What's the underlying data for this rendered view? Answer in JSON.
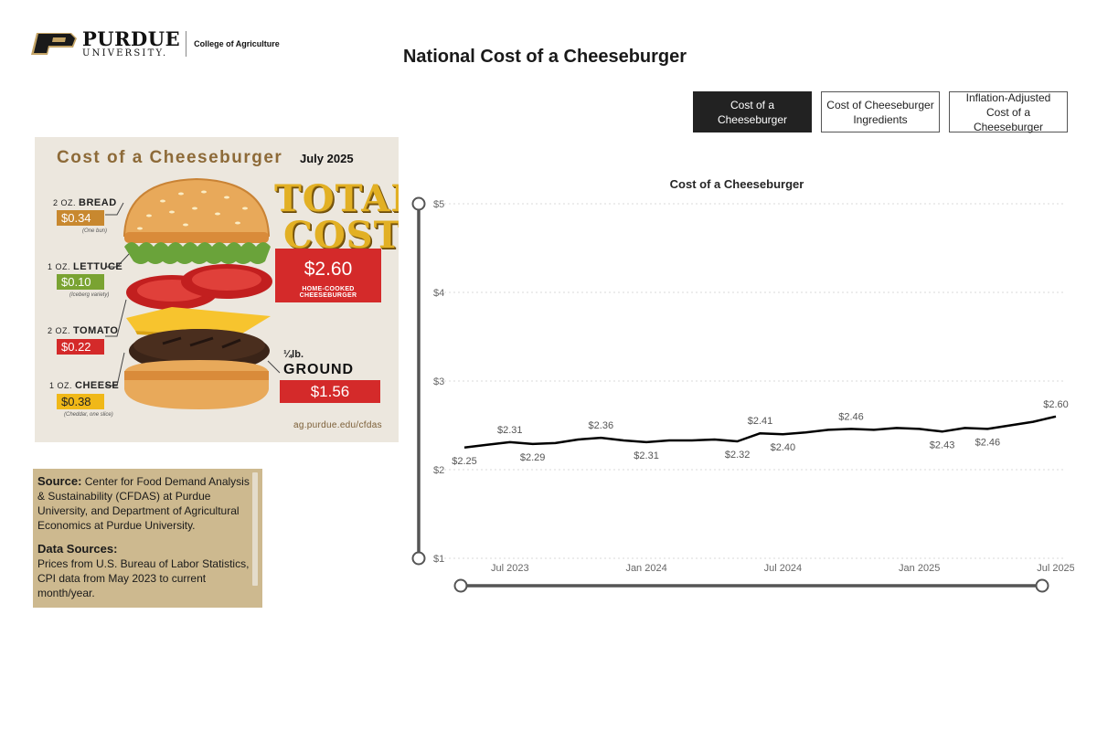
{
  "header": {
    "logo_name": "PURDUE",
    "logo_sub": "UNIVERSITY.",
    "logo_college": "College of Agriculture",
    "page_title": "National Cost of a Cheeseburger"
  },
  "toggles": [
    {
      "label": "Cost of a Cheeseburger",
      "active": true
    },
    {
      "label": "Cost of Cheeseburger Ingredients",
      "active": false
    },
    {
      "label": "Inflation-Adjusted Cost of a Cheeseburger",
      "active": false
    }
  ],
  "infographic": {
    "title": "Cost of a Cheeseburger",
    "date": "July 2025",
    "ingredients": [
      {
        "qty": "2 OZ.",
        "name": "BREAD",
        "price": "$0.34",
        "note": "(One bun)",
        "color": "#c8882f"
      },
      {
        "qty": "1 OZ.",
        "name": "LETTUCE",
        "price": "$0.10",
        "note": "(Iceberg variety)",
        "color": "#7aa332"
      },
      {
        "qty": "2 OZ.",
        "name": "TOMATO",
        "price": "$0.22",
        "note": "",
        "color": "#d42a2a"
      },
      {
        "qty": "1 OZ.",
        "name": "CHEESE",
        "price": "$0.38",
        "note": "(Cheddar, one slice)",
        "color": "#f0b818"
      }
    ],
    "total_word_1": "TOTAL",
    "total_word_2": "COST",
    "total_value": "$2.60",
    "total_sub": "HOME-COOKED CHEESEBURGER",
    "beef_unit": "¼lb.",
    "beef_label": "GROUND BEEF",
    "beef_price": "$1.56",
    "url": "ag.purdue.edu/cfdas"
  },
  "source_card": {
    "source_label": "Source:",
    "source_text": "Center for Food Demand Analysis & Sustainability (CFDAS) at Purdue University, and Department of Agricultural Economics at Purdue University.",
    "data_sources_label": "Data Sources:",
    "data_sources_text": "Prices from U.S. Bureau of Labor Statistics, CPI data from May 2023 to current month/year."
  },
  "chart_data": {
    "type": "line",
    "title": "Cost of a Cheeseburger",
    "xlabel": "",
    "ylabel": "",
    "ylim": [
      1,
      5
    ],
    "yticks": [
      "$1",
      "$2",
      "$3",
      "$4",
      "$5"
    ],
    "xticks": [
      {
        "label": "Jul 2023",
        "x": "2023-07"
      },
      {
        "label": "Jan 2024",
        "x": "2024-01"
      },
      {
        "label": "Jul 2024",
        "x": "2024-07"
      },
      {
        "label": "Jan 2025",
        "x": "2025-01"
      },
      {
        "label": "Jul 2025",
        "x": "2025-07"
      }
    ],
    "x": [
      "2023-05",
      "2023-06",
      "2023-07",
      "2023-08",
      "2023-09",
      "2023-10",
      "2023-11",
      "2023-12",
      "2024-01",
      "2024-02",
      "2024-03",
      "2024-04",
      "2024-05",
      "2024-06",
      "2024-07",
      "2024-08",
      "2024-09",
      "2024-10",
      "2024-11",
      "2024-12",
      "2025-01",
      "2025-02",
      "2025-03",
      "2025-04",
      "2025-05",
      "2025-06",
      "2025-07"
    ],
    "series": [
      {
        "values": [
          2.25,
          2.28,
          2.31,
          2.29,
          2.3,
          2.34,
          2.36,
          2.33,
          2.31,
          2.33,
          2.33,
          2.34,
          2.32,
          2.41,
          2.4,
          2.42,
          2.45,
          2.46,
          2.45,
          2.47,
          2.46,
          2.43,
          2.47,
          2.46,
          2.5,
          2.54,
          2.6
        ],
        "color": "#000000"
      }
    ],
    "data_labels": [
      {
        "x": "2023-05",
        "text": "$2.25",
        "pos": "below"
      },
      {
        "x": "2023-07",
        "text": "$2.31",
        "pos": "above"
      },
      {
        "x": "2023-08",
        "text": "$2.29",
        "pos": "below"
      },
      {
        "x": "2023-11",
        "text": "$2.36",
        "pos": "above"
      },
      {
        "x": "2024-01",
        "text": "$2.31",
        "pos": "below"
      },
      {
        "x": "2024-05",
        "text": "$2.32",
        "pos": "below"
      },
      {
        "x": "2024-06",
        "text": "$2.41",
        "pos": "above"
      },
      {
        "x": "2024-07",
        "text": "$2.40",
        "pos": "below"
      },
      {
        "x": "2024-10",
        "text": "$2.46",
        "pos": "above"
      },
      {
        "x": "2025-02",
        "text": "$2.43",
        "pos": "below"
      },
      {
        "x": "2025-04",
        "text": "$2.46",
        "pos": "below"
      },
      {
        "x": "2025-07",
        "text": "$2.60",
        "pos": "above"
      }
    ],
    "grid": true,
    "legend": "none",
    "y_slider_range": [
      1,
      5
    ],
    "x_slider_range": [
      "2023-05",
      "2025-07"
    ]
  }
}
